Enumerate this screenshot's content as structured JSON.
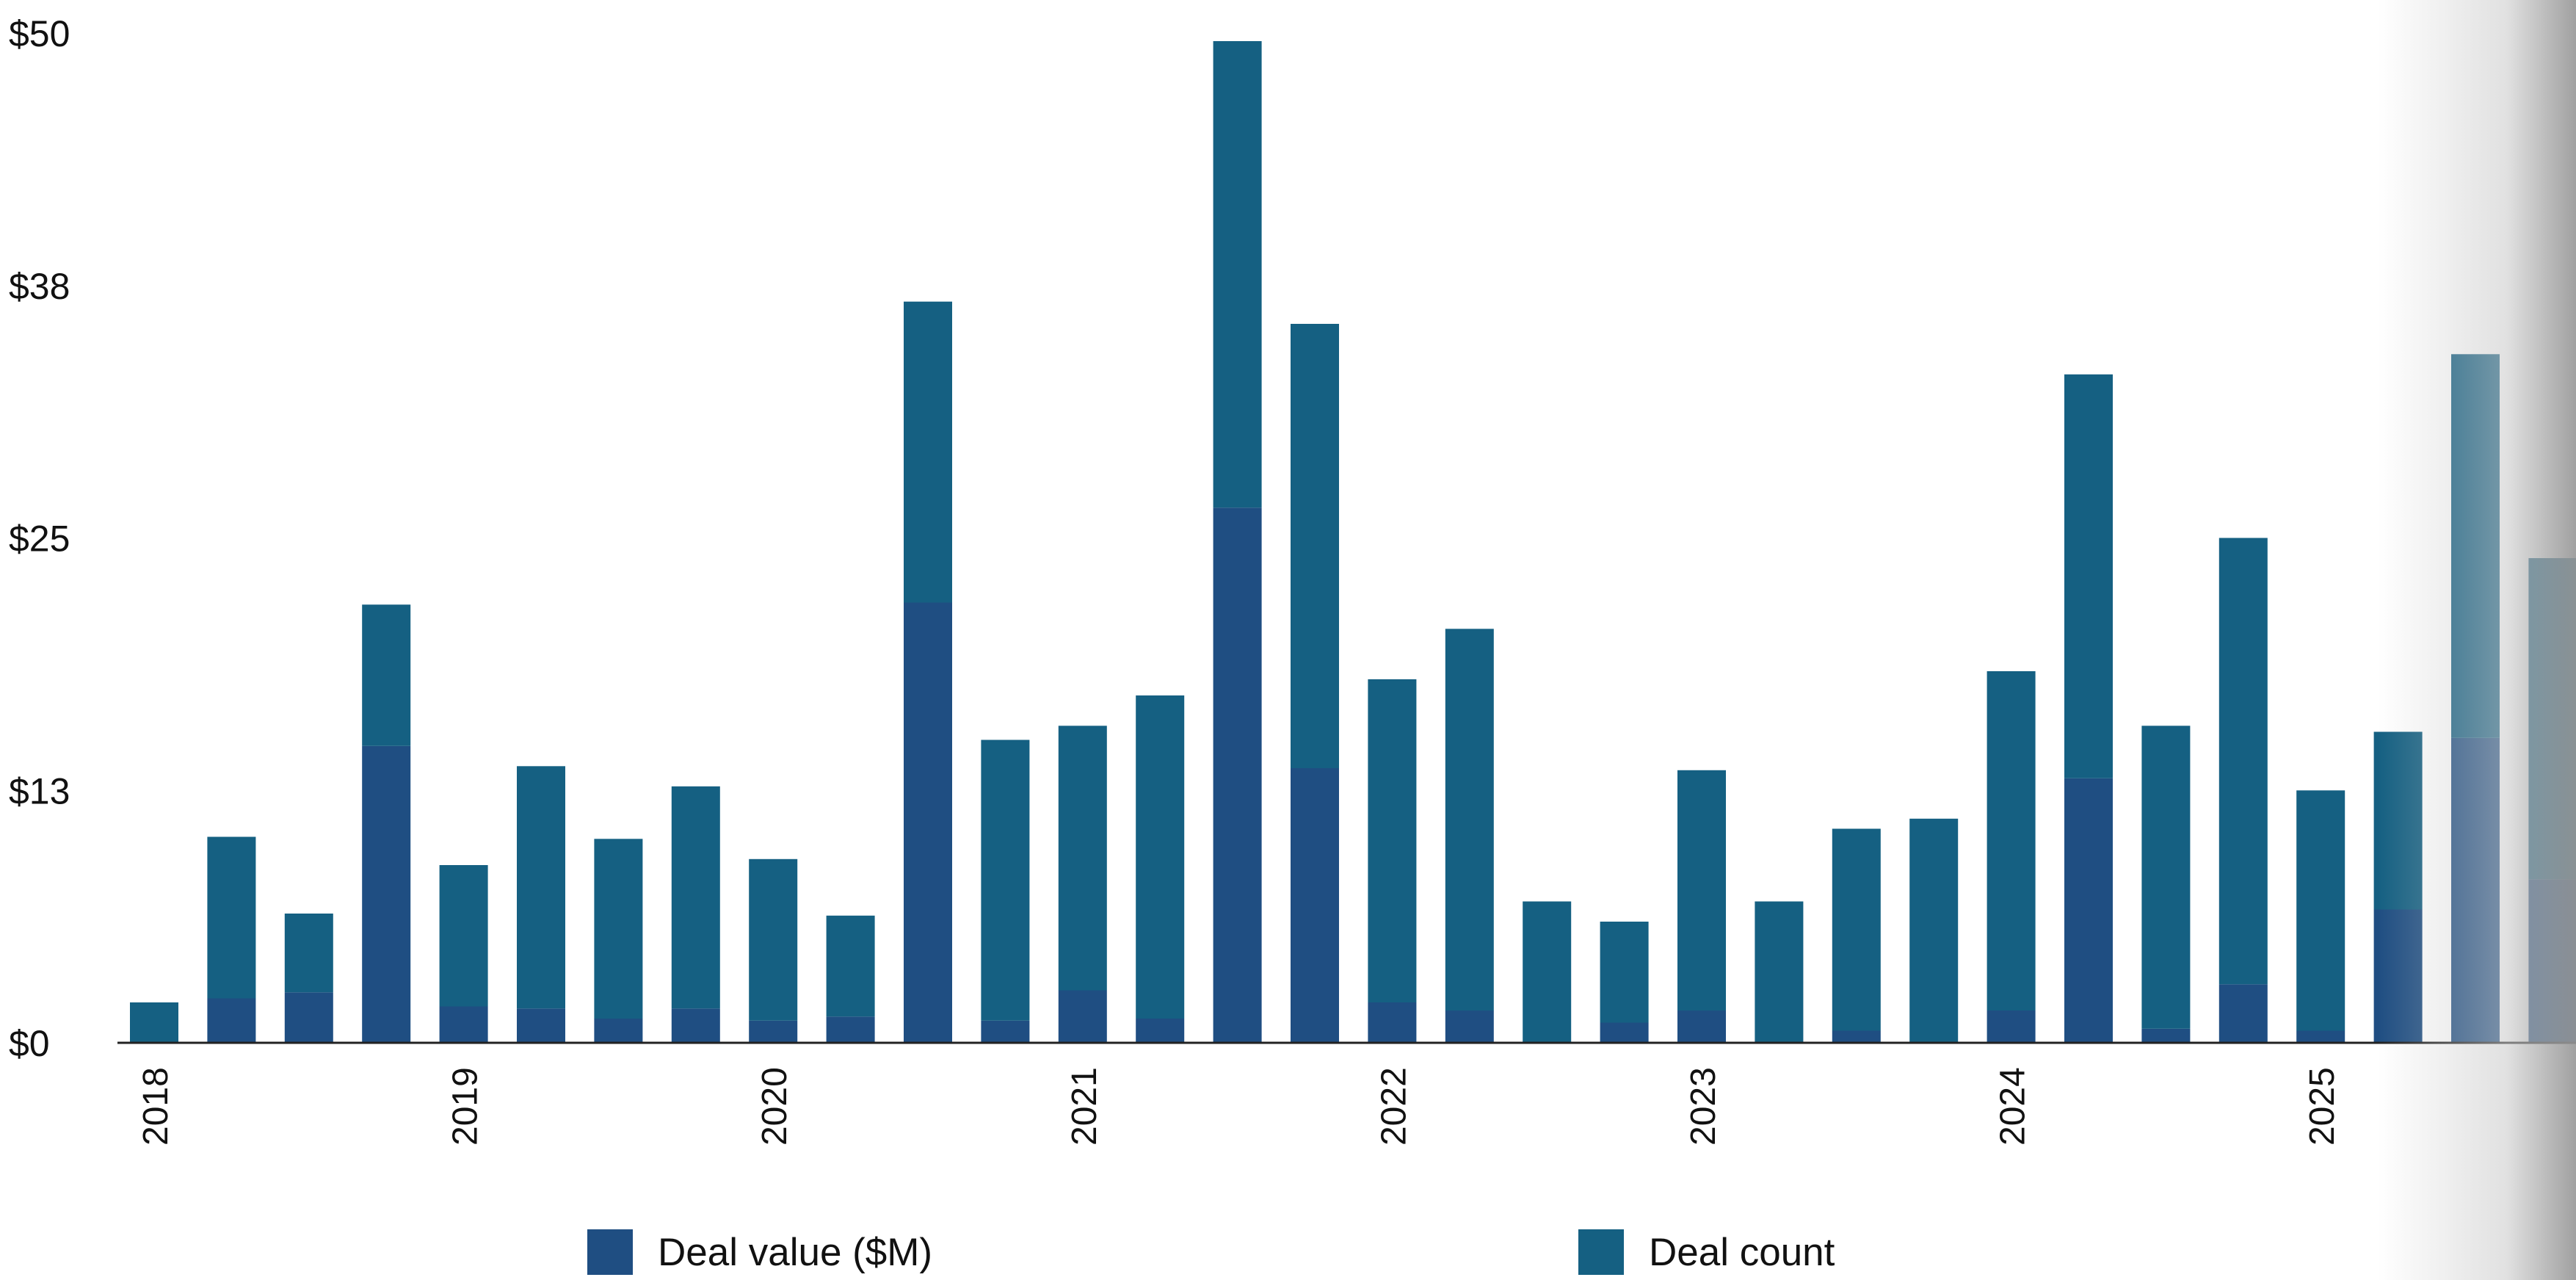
{
  "chart_data": {
    "type": "bar",
    "stacked": true,
    "y_ticks": [
      "$0",
      "$13",
      "$25",
      "$38",
      "$50"
    ],
    "y_tick_values": [
      0,
      12.5,
      25,
      37.5,
      50
    ],
    "ylim": [
      0,
      50
    ],
    "year_labels": [
      "2018",
      "2019",
      "2020",
      "2021",
      "2022",
      "2023",
      "2024",
      "2025"
    ],
    "categories": [
      "2018-Q1",
      "2018-Q2",
      "2018-Q3",
      "2018-Q4",
      "2019-Q1",
      "2019-Q2",
      "2019-Q3",
      "2019-Q4",
      "2020-Q1",
      "2020-Q2",
      "2020-Q3",
      "2020-Q4",
      "2021-Q1",
      "2021-Q2",
      "2021-Q3",
      "2021-Q4",
      "2022-Q1",
      "2022-Q2",
      "2022-Q3",
      "2022-Q4",
      "2023-Q1",
      "2023-Q2",
      "2023-Q3",
      "2023-Q4",
      "2024-Q1",
      "2024-Q2",
      "2024-Q3",
      "2024-Q4",
      "2025-Q1",
      "2025-Q2",
      "2025-Q3",
      "2025-Q4"
    ],
    "series": [
      {
        "name": "Deal value ($M)",
        "color": "#1f4e82",
        "values": [
          0,
          2.2,
          2.5,
          14.7,
          1.8,
          1.7,
          1.2,
          1.7,
          1.1,
          1.3,
          21.8,
          1.1,
          2.6,
          1.2,
          26.5,
          13.6,
          2.0,
          1.6,
          0,
          1.0,
          1.6,
          0,
          0.6,
          0,
          1.6,
          13.1,
          0.7,
          2.9,
          0.6,
          6.6,
          15.1,
          8.1
        ]
      },
      {
        "name": "Deal count",
        "color": "#156082",
        "values": [
          2.0,
          8.0,
          3.9,
          7.0,
          7.0,
          12.0,
          8.9,
          11.0,
          8.0,
          5.0,
          14.9,
          13.9,
          13.1,
          16.0,
          23.1,
          22.0,
          16.0,
          18.9,
          7.0,
          5.0,
          11.9,
          7.0,
          10.0,
          11.1,
          16.8,
          20.0,
          15.0,
          22.1,
          11.9,
          8.8,
          19.0,
          15.9
        ]
      }
    ],
    "grid": false,
    "legend_position": "bottom"
  }
}
